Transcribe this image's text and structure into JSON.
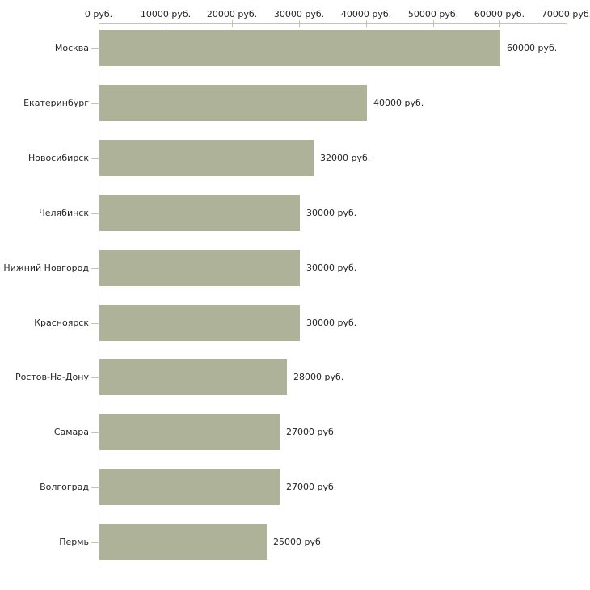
{
  "chart_data": {
    "type": "bar",
    "orientation": "horizontal",
    "title": "",
    "xlabel": "",
    "ylabel": "",
    "unit": "руб.",
    "xlim": [
      0,
      70000
    ],
    "grid": false,
    "legend": false,
    "categories": [
      "Москва",
      "Екатеринбург",
      "Новосибирск",
      "Челябинск",
      "Нижний Новгород",
      "Красноярск",
      "Ростов-На-Дону",
      "Самара",
      "Волгоград",
      "Пермь"
    ],
    "values": [
      60000,
      40000,
      32000,
      30000,
      30000,
      30000,
      28000,
      27000,
      27000,
      25000
    ],
    "value_labels": [
      "60000 руб.",
      "40000 руб.",
      "32000 руб.",
      "30000 руб.",
      "30000 руб.",
      "30000 руб.",
      "28000 руб.",
      "27000 руб.",
      "27000 руб.",
      "25000 руб."
    ],
    "x_ticks": [
      0,
      10000,
      20000,
      30000,
      40000,
      50000,
      60000,
      70000
    ],
    "x_tick_labels": [
      "0 руб.",
      "10000 руб.",
      "20000 руб.",
      "30000 руб.",
      "40000 руб.",
      "50000 руб.",
      "60000 руб.",
      "70000 руб."
    ],
    "colors": {
      "bar": "#adb299",
      "axis": "#c3c3c3",
      "tick": "#cbc795",
      "text": "#262626",
      "background": "#ffffff"
    }
  }
}
